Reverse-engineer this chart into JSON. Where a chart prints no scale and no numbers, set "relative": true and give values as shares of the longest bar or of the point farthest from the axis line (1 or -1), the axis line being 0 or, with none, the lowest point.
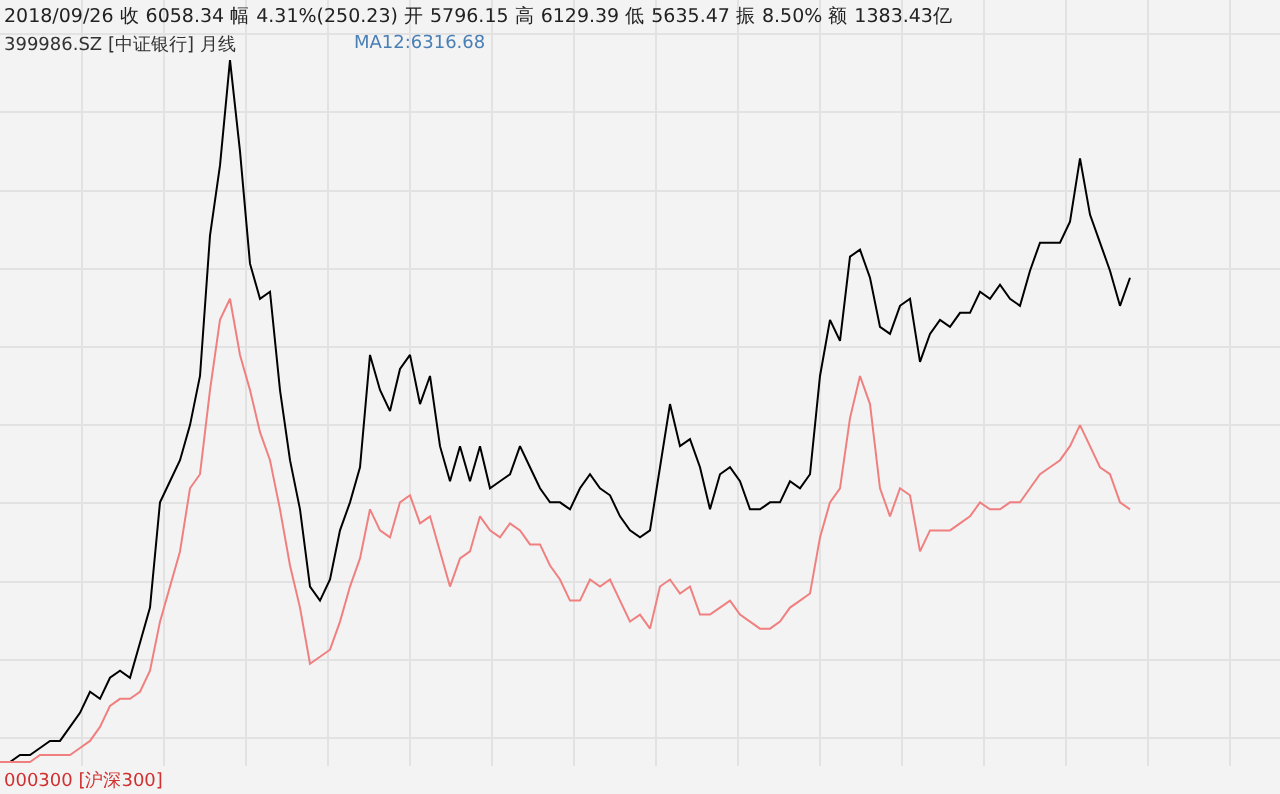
{
  "chart_data": {
    "type": "line",
    "relative": true,
    "grid": true,
    "legend": false,
    "title": "2018/09/26 收 6058.34 幅 4.31%(250.23) 开 5796.15 高 6129.39 低 5635.47 振 8.50% 额 1383.43亿",
    "annotations": [
      "MA12:6316.68"
    ],
    "categories": [
      null,
      null,
      null,
      null,
      null,
      null,
      null,
      null,
      null,
      null,
      null,
      null,
      null,
      null,
      null,
      null,
      null,
      null,
      null,
      null,
      null,
      null,
      null,
      null,
      null,
      null,
      null,
      null,
      null,
      null,
      null,
      null,
      null,
      null,
      null,
      null,
      null,
      null,
      null,
      null,
      null,
      null,
      null,
      null,
      null,
      null,
      null,
      null,
      null,
      null,
      null,
      null,
      null,
      null,
      null,
      null,
      null,
      null,
      null,
      null,
      null,
      null,
      null,
      null,
      null,
      null,
      null,
      null,
      null,
      null,
      null,
      null,
      null,
      null,
      null,
      null,
      null,
      null,
      null,
      null,
      null,
      null,
      null,
      null,
      null,
      null,
      null,
      null,
      null,
      null,
      null,
      null,
      null,
      null,
      null,
      null,
      null,
      null,
      null,
      null,
      null,
      null,
      null,
      null,
      null,
      null,
      null,
      null,
      null,
      null,
      null,
      null,
      null,
      null
    ],
    "series": [
      {
        "name": "399986.SZ [中证银行] 月线",
        "color": "#000000",
        "values": [
          0.0,
          0.0,
          0.01,
          0.01,
          0.02,
          0.03,
          0.03,
          0.05,
          0.07,
          0.1,
          0.09,
          0.12,
          0.13,
          0.12,
          0.17,
          0.22,
          0.37,
          0.4,
          0.43,
          0.48,
          0.55,
          0.75,
          0.85,
          1.0,
          0.87,
          0.71,
          0.66,
          0.67,
          0.53,
          0.43,
          0.36,
          0.25,
          0.23,
          0.26,
          0.33,
          0.37,
          0.42,
          0.58,
          0.53,
          0.5,
          0.56,
          0.58,
          0.51,
          0.55,
          0.45,
          0.4,
          0.45,
          0.4,
          0.45,
          0.39,
          0.4,
          0.41,
          0.45,
          0.42,
          0.39,
          0.37,
          0.37,
          0.36,
          0.39,
          0.41,
          0.39,
          0.38,
          0.35,
          0.33,
          0.32,
          0.33,
          0.42,
          0.51,
          0.45,
          0.46,
          0.42,
          0.36,
          0.41,
          0.42,
          0.4,
          0.36,
          0.36,
          0.37,
          0.37,
          0.4,
          0.39,
          0.41,
          0.55,
          0.63,
          0.6,
          0.72,
          0.73,
          0.69,
          0.62,
          0.61,
          0.65,
          0.66,
          0.57,
          0.61,
          0.63,
          0.62,
          0.64,
          0.64,
          0.67,
          0.66,
          0.68,
          0.66,
          0.65,
          0.7,
          0.74,
          0.74,
          0.74,
          0.77,
          0.86,
          0.78,
          0.74,
          0.7,
          0.65,
          0.69
        ]
      },
      {
        "name": "000300 [沪深300]",
        "color": "#f08080",
        "values": [
          0.0,
          0.0,
          0.0,
          0.0,
          0.01,
          0.01,
          0.01,
          0.01,
          0.02,
          0.03,
          0.05,
          0.08,
          0.09,
          0.09,
          0.1,
          0.13,
          0.2,
          0.25,
          0.3,
          0.39,
          0.41,
          0.53,
          0.63,
          0.66,
          0.58,
          0.53,
          0.47,
          0.43,
          0.36,
          0.28,
          0.22,
          0.14,
          0.15,
          0.16,
          0.2,
          0.25,
          0.29,
          0.36,
          0.33,
          0.32,
          0.37,
          0.38,
          0.34,
          0.35,
          0.3,
          0.25,
          0.29,
          0.3,
          0.35,
          0.33,
          0.32,
          0.34,
          0.33,
          0.31,
          0.31,
          0.28,
          0.26,
          0.23,
          0.23,
          0.26,
          0.25,
          0.26,
          0.23,
          0.2,
          0.21,
          0.19,
          0.25,
          0.26,
          0.24,
          0.25,
          0.21,
          0.21,
          0.22,
          0.23,
          0.21,
          0.2,
          0.19,
          0.19,
          0.2,
          0.22,
          0.23,
          0.24,
          0.32,
          0.37,
          0.39,
          0.49,
          0.55,
          0.51,
          0.39,
          0.35,
          0.39,
          0.38,
          0.3,
          0.33,
          0.33,
          0.33,
          0.34,
          0.35,
          0.37,
          0.36,
          0.36,
          0.37,
          0.37,
          0.39,
          0.41,
          0.42,
          0.43,
          0.45,
          0.48,
          0.45,
          0.42,
          0.41,
          0.37,
          0.36
        ]
      }
    ]
  }
}
